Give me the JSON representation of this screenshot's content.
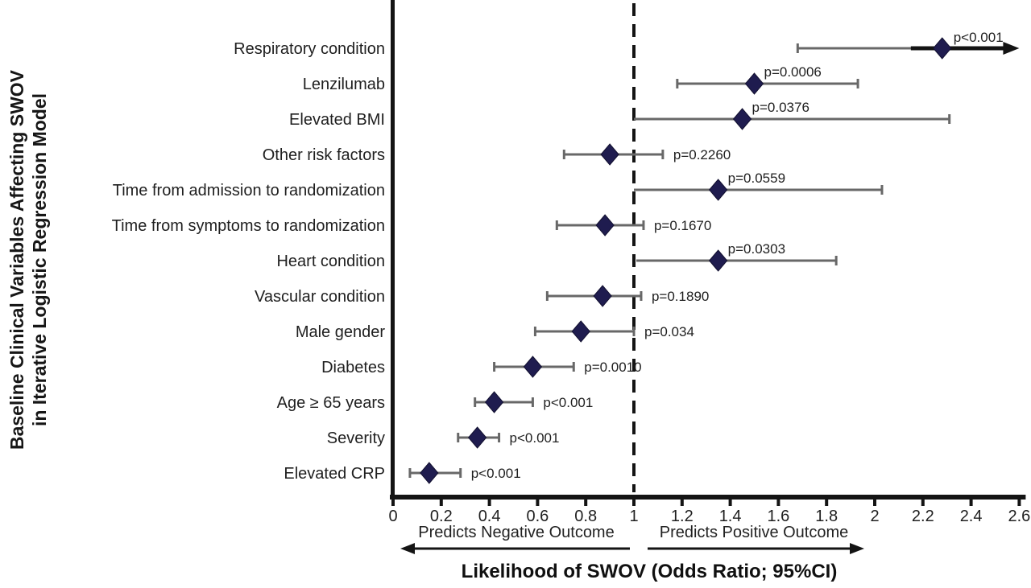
{
  "chart_data": {
    "type": "scatter",
    "variant": "forest-plot",
    "xlabel": "Likelihood of SWOV (Odds Ratio; 95%CI)",
    "ylabel_lines": [
      "Baseline Clinical Variables Affecting SWOV",
      "in Iterative Logistic Regression Model"
    ],
    "xlim": [
      0,
      2.6
    ],
    "reference_line": 1,
    "x_ticks": [
      0,
      0.2,
      0.4,
      0.6,
      0.8,
      1,
      1.2,
      1.4,
      1.6,
      1.8,
      2,
      2.2,
      2.4,
      2.6
    ],
    "x_tick_labels": [
      "0",
      "0.2",
      "0.4",
      "0.6",
      "0.8",
      "1",
      "1.2",
      "1.4",
      "1.6",
      "1.8",
      "2",
      "2.2",
      "2.4",
      "2.6"
    ],
    "direction_labels": {
      "negative": "Predicts Negative Outcome",
      "positive": "Predicts Positive Outcome"
    },
    "legend_position": "none",
    "grid": false,
    "rows": [
      {
        "label": "Respiratory condition",
        "or": 2.28,
        "ci_low": 1.68,
        "ci_high": 2.6,
        "ci_arrow_right": true,
        "p": "p<0.001",
        "p_mode": "above",
        "cap_left": true,
        "cap_right": false
      },
      {
        "label": "Lenzilumab",
        "or": 1.5,
        "ci_low": 1.18,
        "ci_high": 1.93,
        "ci_arrow_right": false,
        "p": "p=0.0006",
        "p_mode": "above",
        "cap_left": true,
        "cap_right": true
      },
      {
        "label": "Elevated BMI",
        "or": 1.45,
        "ci_low": 1.0,
        "ci_high": 2.31,
        "ci_arrow_right": false,
        "p": "p=0.0376",
        "p_mode": "above",
        "cap_left": false,
        "cap_right": true
      },
      {
        "label": "Other risk factors",
        "or": 0.9,
        "ci_low": 0.71,
        "ci_high": 1.12,
        "ci_arrow_right": false,
        "p": "p=0.2260",
        "p_mode": "right",
        "cap_left": true,
        "cap_right": true
      },
      {
        "label": "Time from admission to randomization",
        "or": 1.35,
        "ci_low": 1.0,
        "ci_high": 2.03,
        "ci_arrow_right": false,
        "p": "p=0.0559",
        "p_mode": "above",
        "cap_left": false,
        "cap_right": true
      },
      {
        "label": "Time from symptoms to randomization",
        "or": 0.88,
        "ci_low": 0.68,
        "ci_high": 1.04,
        "ci_arrow_right": false,
        "p": "p=0.1670",
        "p_mode": "right",
        "cap_left": true,
        "cap_right": true
      },
      {
        "label": "Heart condition",
        "or": 1.35,
        "ci_low": 1.01,
        "ci_high": 1.84,
        "ci_arrow_right": false,
        "p": "p=0.0303",
        "p_mode": "above",
        "cap_left": false,
        "cap_right": true
      },
      {
        "label": "Vascular condition",
        "or": 0.87,
        "ci_low": 0.64,
        "ci_high": 1.03,
        "ci_arrow_right": false,
        "p": "p=0.1890",
        "p_mode": "right",
        "cap_left": true,
        "cap_right": true
      },
      {
        "label": "Male gender",
        "or": 0.78,
        "ci_low": 0.59,
        "ci_high": 1.0,
        "ci_arrow_right": false,
        "p": "p=0.034",
        "p_mode": "right",
        "cap_left": true,
        "cap_right": true
      },
      {
        "label": "Diabetes",
        "or": 0.58,
        "ci_low": 0.42,
        "ci_high": 0.75,
        "ci_arrow_right": false,
        "p": "p=0.0010",
        "p_mode": "right",
        "cap_left": true,
        "cap_right": true
      },
      {
        "label": "Age ≥ 65 years",
        "or": 0.42,
        "ci_low": 0.34,
        "ci_high": 0.58,
        "ci_arrow_right": false,
        "p": "p<0.001",
        "p_mode": "right",
        "cap_left": true,
        "cap_right": true
      },
      {
        "label": "Severity",
        "or": 0.35,
        "ci_low": 0.27,
        "ci_high": 0.44,
        "ci_arrow_right": false,
        "p": "p<0.001",
        "p_mode": "right",
        "cap_left": true,
        "cap_right": true
      },
      {
        "label": "Elevated CRP",
        "or": 0.15,
        "ci_low": 0.07,
        "ci_high": 0.28,
        "ci_arrow_right": false,
        "p": "p<0.001",
        "p_mode": "right",
        "cap_left": true,
        "cap_right": true
      }
    ],
    "colors": {
      "marker": "#1f1c4f",
      "marker_stroke": "#12102f",
      "ci": "#686868",
      "axis": "#141414",
      "text": "#1f1f1f"
    }
  }
}
